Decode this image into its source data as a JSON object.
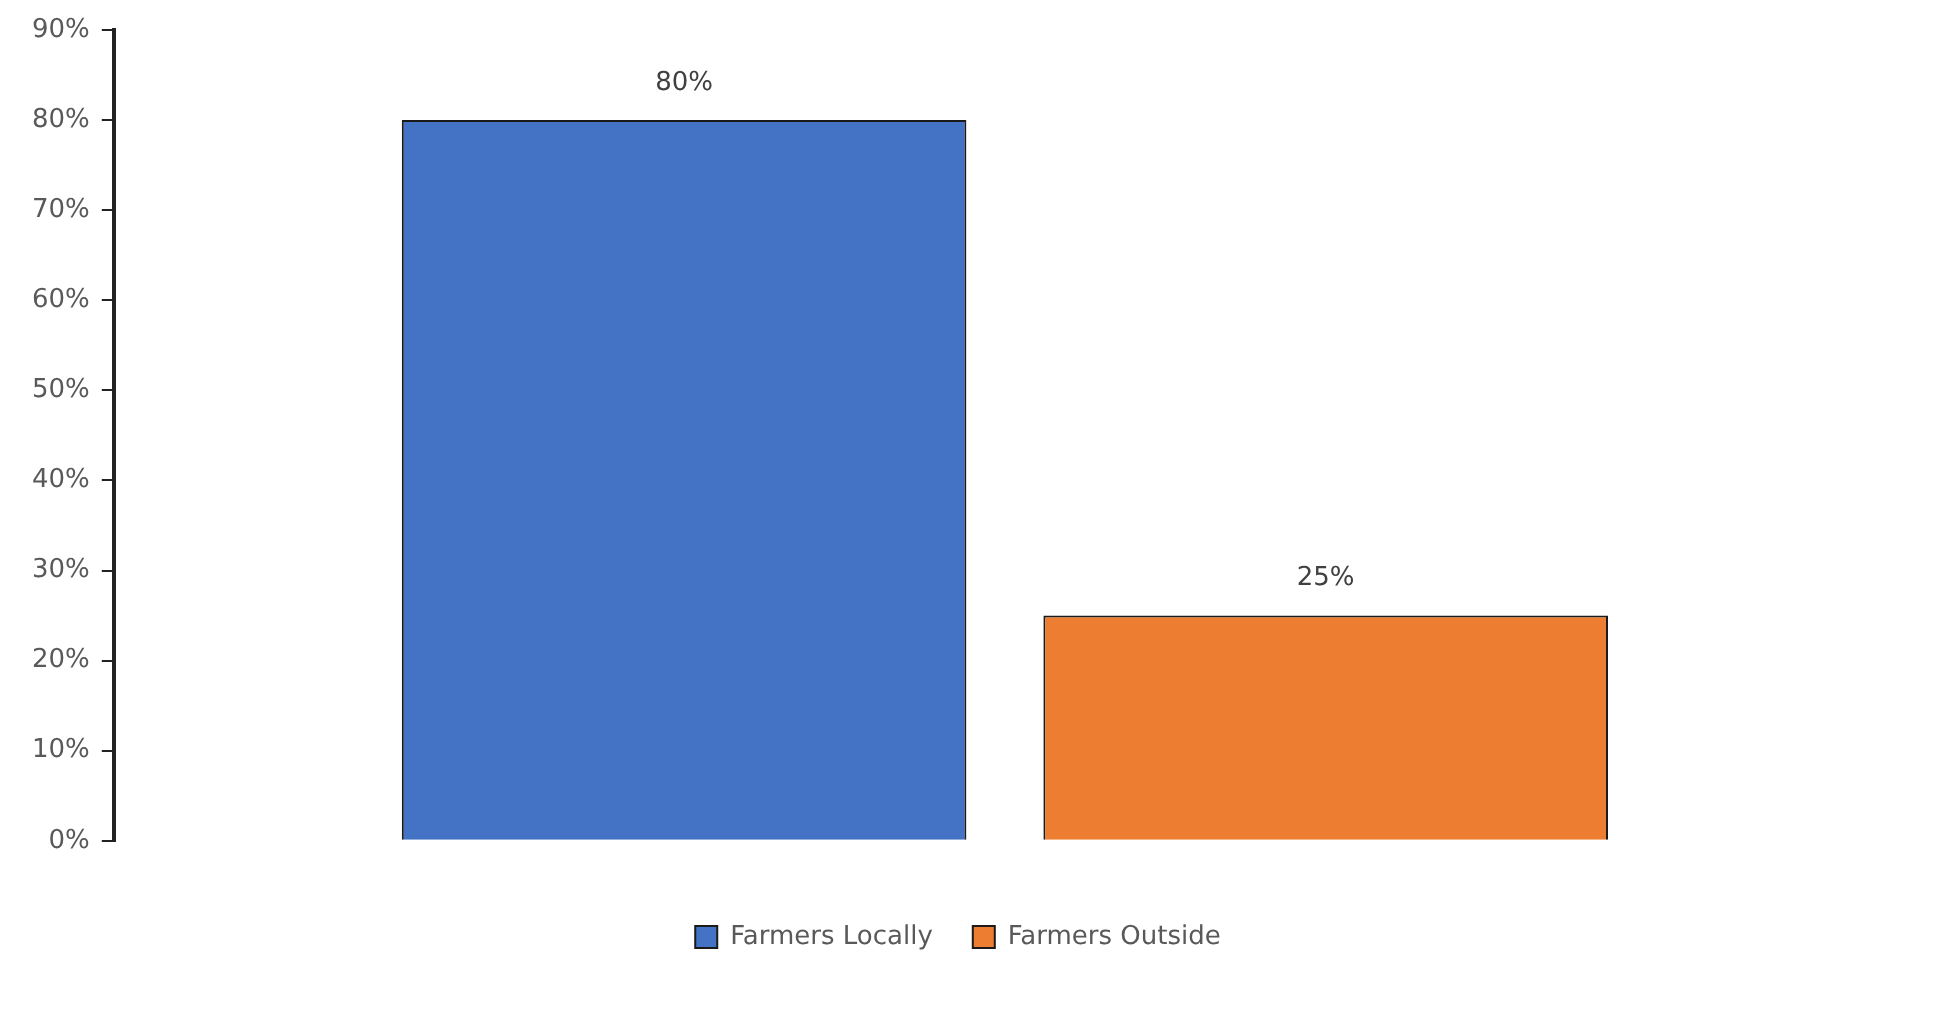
{
  "chart_data": {
    "type": "bar",
    "categories": [
      null
    ],
    "series": [
      {
        "name": "Farmers Locally",
        "color": "#4472c4",
        "values": [
          80
        ],
        "value_labels": [
          "80%"
        ]
      },
      {
        "name": "Farmers Outside",
        "color": "#ed7d31",
        "values": [
          25
        ],
        "value_labels": [
          "25%"
        ]
      }
    ],
    "ylim": [
      0,
      90
    ],
    "yticks": [
      {
        "value": 0,
        "label": "0%"
      },
      {
        "value": 10,
        "label": "10%"
      },
      {
        "value": 20,
        "label": "20%"
      },
      {
        "value": 30,
        "label": "30%"
      },
      {
        "value": 40,
        "label": "40%"
      },
      {
        "value": 50,
        "label": "50%"
      },
      {
        "value": 60,
        "label": "60%"
      },
      {
        "value": 70,
        "label": "70%"
      },
      {
        "value": 80,
        "label": "80%"
      },
      {
        "value": 90,
        "label": "90%"
      }
    ],
    "grid": false,
    "legend": "bottom"
  }
}
